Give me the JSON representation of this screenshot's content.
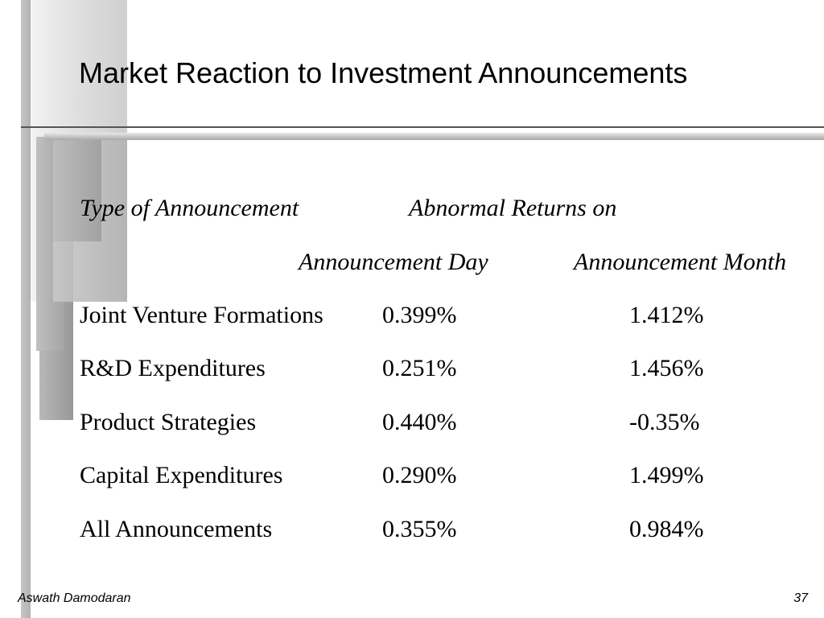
{
  "slide": {
    "title": "Market Reaction to Investment Announcements",
    "header": {
      "type_label": "Type of Announcement",
      "returns_label": "Abnormal Returns on",
      "day_label": "Announcement Day",
      "month_label": "Announcement Month"
    },
    "rows": [
      {
        "type": "Joint Venture Formations",
        "day": "0.399%",
        "month": "1.412%"
      },
      {
        "type": "R&D Expenditures",
        "day": "0.251%",
        "month": "1.456%"
      },
      {
        "type": "Product Strategies",
        "day": "0.440%",
        "month": "-0.35%"
      },
      {
        "type": "Capital Expenditures",
        "day": "0.290%",
        "month": "1.499%"
      },
      {
        "type": "All Announcements",
        "day": "0.355%",
        "month": "0.984%"
      }
    ]
  },
  "footer": {
    "author": "Aswath Damodaran",
    "page_number": "37"
  }
}
